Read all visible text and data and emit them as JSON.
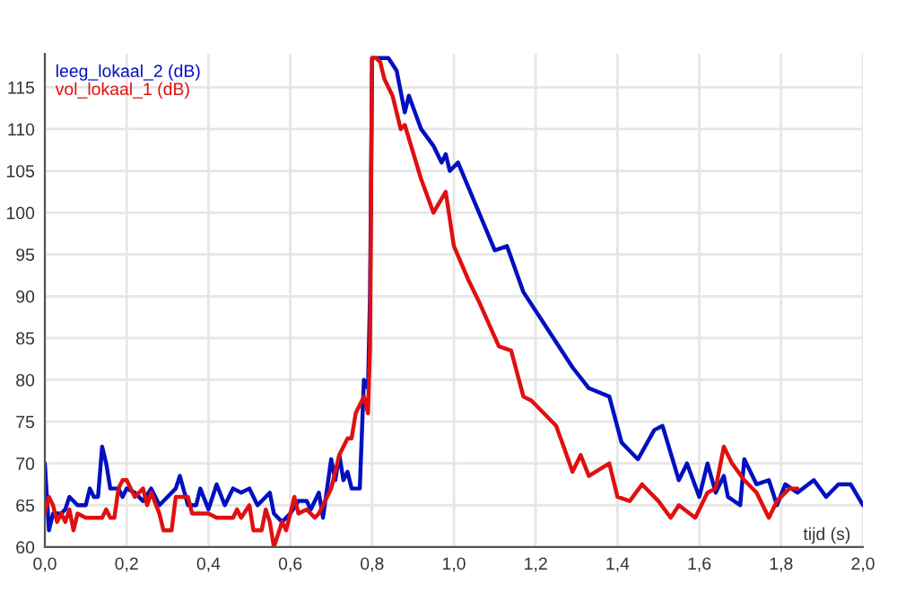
{
  "chart_data": {
    "type": "line",
    "xlabel": "tijd (s)",
    "xlim": [
      0,
      2.0
    ],
    "ylim": [
      60,
      119
    ],
    "xticks": [
      {
        "value": 0,
        "label": "0,0"
      },
      {
        "value": 0.2,
        "label": "0,2"
      },
      {
        "value": 0.4,
        "label": "0,4"
      },
      {
        "value": 0.6,
        "label": "0,6"
      },
      {
        "value": 0.8,
        "label": "0,8"
      },
      {
        "value": 1.0,
        "label": "1,0"
      },
      {
        "value": 1.2,
        "label": "1,2"
      },
      {
        "value": 1.4,
        "label": "1,4"
      },
      {
        "value": 1.6,
        "label": "1,6"
      },
      {
        "value": 1.8,
        "label": "1,8"
      },
      {
        "value": 2.0,
        "label": "2,0"
      }
    ],
    "yticks": [
      60,
      65,
      70,
      75,
      80,
      85,
      90,
      95,
      100,
      105,
      110,
      115
    ],
    "grid": true,
    "legend": "top left",
    "marker": "none",
    "line_style": "solid",
    "series": [
      {
        "name": "leeg_lokaal_2 (dB)",
        "color": "#0010c0",
        "x": [
          0.0,
          0.01,
          0.02,
          0.04,
          0.05,
          0.06,
          0.08,
          0.1,
          0.11,
          0.12,
          0.13,
          0.14,
          0.15,
          0.16,
          0.18,
          0.19,
          0.2,
          0.22,
          0.24,
          0.26,
          0.28,
          0.3,
          0.32,
          0.33,
          0.35,
          0.37,
          0.38,
          0.4,
          0.42,
          0.44,
          0.46,
          0.48,
          0.5,
          0.52,
          0.54,
          0.55,
          0.56,
          0.58,
          0.6,
          0.62,
          0.64,
          0.65,
          0.67,
          0.68,
          0.7,
          0.71,
          0.72,
          0.73,
          0.74,
          0.75,
          0.77,
          0.78,
          0.79,
          0.795,
          0.8,
          0.82,
          0.84,
          0.86,
          0.88,
          0.89,
          0.92,
          0.95,
          0.97,
          0.98,
          0.99,
          1.01,
          1.07,
          1.1,
          1.13,
          1.17,
          1.23,
          1.29,
          1.33,
          1.38,
          1.41,
          1.45,
          1.49,
          1.51,
          1.55,
          1.57,
          1.6,
          1.62,
          1.64,
          1.66,
          1.67,
          1.7,
          1.71,
          1.74,
          1.77,
          1.79,
          1.81,
          1.84,
          1.88,
          1.91,
          1.94,
          1.97,
          2.0
        ],
        "values": [
          70,
          62,
          64,
          64,
          64.5,
          66,
          65,
          65,
          67,
          66,
          66,
          72,
          70,
          67,
          67,
          66,
          67,
          66.5,
          65.5,
          67,
          65,
          66,
          67,
          68.5,
          65,
          65,
          67,
          64.5,
          67.5,
          65,
          67,
          66.5,
          67,
          65,
          66,
          66.5,
          64,
          63,
          64,
          65.5,
          65.5,
          64.5,
          66.5,
          63.5,
          70.5,
          68,
          71,
          68,
          69,
          67,
          67,
          80,
          79,
          90,
          118.5,
          118.5,
          118.5,
          117,
          112,
          114,
          110,
          108,
          106,
          107,
          105,
          106,
          99,
          95.5,
          96,
          90.5,
          86,
          81.5,
          79,
          78,
          72.5,
          70.5,
          74,
          74.5,
          68,
          70,
          66,
          70,
          66.5,
          68.5,
          66,
          65,
          70.5,
          67.5,
          68,
          65,
          67.5,
          66.5,
          68,
          66,
          67.5,
          67.5,
          65
        ]
      },
      {
        "name": "vol_lokaal_1 (dB)",
        "color": "#e01010",
        "x": [
          0.0,
          0.01,
          0.02,
          0.03,
          0.04,
          0.05,
          0.06,
          0.07,
          0.08,
          0.1,
          0.12,
          0.14,
          0.15,
          0.16,
          0.17,
          0.18,
          0.19,
          0.2,
          0.22,
          0.24,
          0.25,
          0.26,
          0.28,
          0.29,
          0.31,
          0.32,
          0.35,
          0.36,
          0.4,
          0.42,
          0.46,
          0.47,
          0.48,
          0.5,
          0.51,
          0.53,
          0.54,
          0.55,
          0.56,
          0.58,
          0.59,
          0.61,
          0.62,
          0.64,
          0.66,
          0.67,
          0.69,
          0.7,
          0.72,
          0.74,
          0.75,
          0.76,
          0.78,
          0.79,
          0.795,
          0.8,
          0.81,
          0.82,
          0.83,
          0.85,
          0.87,
          0.88,
          0.92,
          0.95,
          0.98,
          1.0,
          1.035,
          1.06,
          1.11,
          1.14,
          1.17,
          1.19,
          1.25,
          1.27,
          1.29,
          1.31,
          1.33,
          1.38,
          1.4,
          1.43,
          1.46,
          1.5,
          1.53,
          1.55,
          1.59,
          1.62,
          1.64,
          1.66,
          1.68,
          1.71,
          1.74,
          1.77,
          1.79,
          1.82,
          1.84
        ],
        "values": [
          64,
          66,
          65,
          63,
          64,
          63,
          64.5,
          62,
          64,
          63.5,
          63.5,
          63.5,
          64.5,
          63.5,
          63.5,
          67,
          68,
          68,
          66,
          67,
          65,
          66.5,
          64,
          62,
          62,
          66,
          66,
          64,
          64,
          63.5,
          63.5,
          64.5,
          63.5,
          65,
          62,
          62,
          64.5,
          63,
          60,
          63,
          62,
          66,
          64,
          64.5,
          63.5,
          64,
          66,
          67,
          71,
          73,
          73,
          76,
          78,
          76,
          84,
          118.5,
          118.5,
          118,
          116,
          114,
          110,
          110.5,
          104,
          100,
          102.5,
          96,
          92,
          89.5,
          84,
          83.5,
          78,
          77.5,
          74.5,
          71.8,
          69,
          71,
          68.5,
          70,
          66,
          65.5,
          67.5,
          65.5,
          63.5,
          65,
          63.5,
          66.5,
          67,
          72,
          70,
          68,
          66.5,
          63.5,
          65.5,
          67,
          67
        ]
      }
    ]
  }
}
